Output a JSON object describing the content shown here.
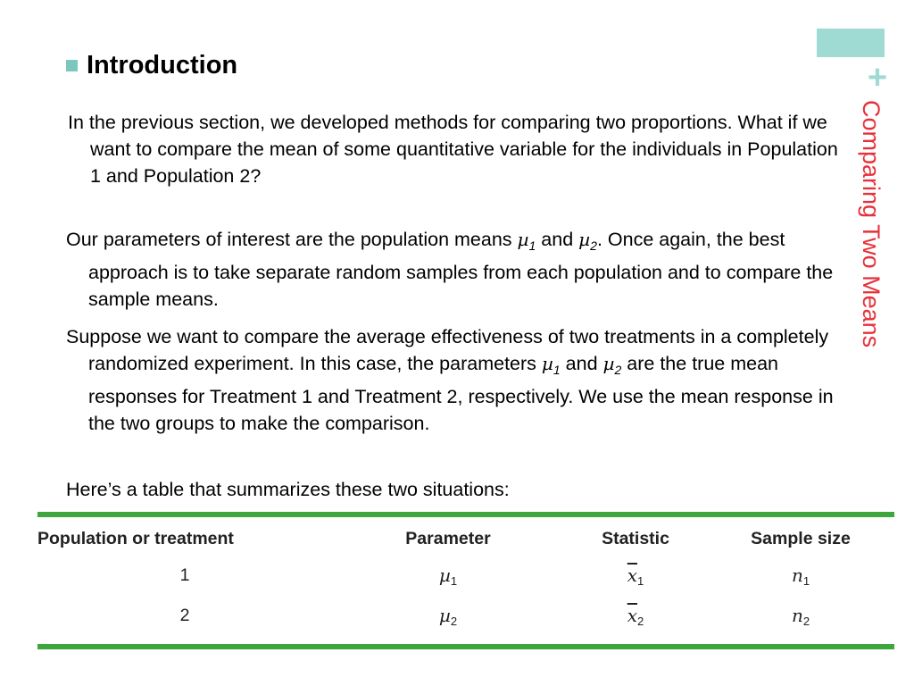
{
  "colors": {
    "accent_rect": "#9fdbd3",
    "plus": "#9fdbd3",
    "side_title": "#e8303a",
    "bullet": "#7cc7bd",
    "rule": "#3da63d"
  },
  "side_title": "Comparing Two Means",
  "plus_symbol": "+",
  "heading": "Introduction",
  "paragraphs": {
    "p1": "In the previous section, we developed methods for comparing two proportions. What if we want to compare the mean of some quantitative variable for the individuals in Population 1 and Population 2?",
    "p2": {
      "a": "Our parameters of interest are the population means ",
      "mu": "µ",
      "s1": "1",
      "and": " and ",
      "s2": "2",
      "b": ". Once again, the best approach is to take separate random samples from each population and to compare the sample means."
    },
    "p3": {
      "a": "Suppose we want to compare the average effectiveness of two treatments in a completely randomized experiment. In this case, the parameters ",
      "mu": "µ",
      "s1": "1",
      "and": " and ",
      "s2": "2",
      "b": " are the  true mean responses for Treatment 1 and Treatment 2, respectively. We use the mean response in the two groups to make the comparison."
    },
    "p4": "Here’s a table that summarizes these two situations:"
  },
  "table": {
    "headers": [
      "Population or treatment",
      "Parameter",
      "Statistic",
      "Sample size"
    ],
    "symbols": {
      "mu": "µ",
      "x": "x",
      "n": "n"
    },
    "rows": [
      {
        "label": "1",
        "sub": "1"
      },
      {
        "label": "2",
        "sub": "2"
      }
    ]
  }
}
